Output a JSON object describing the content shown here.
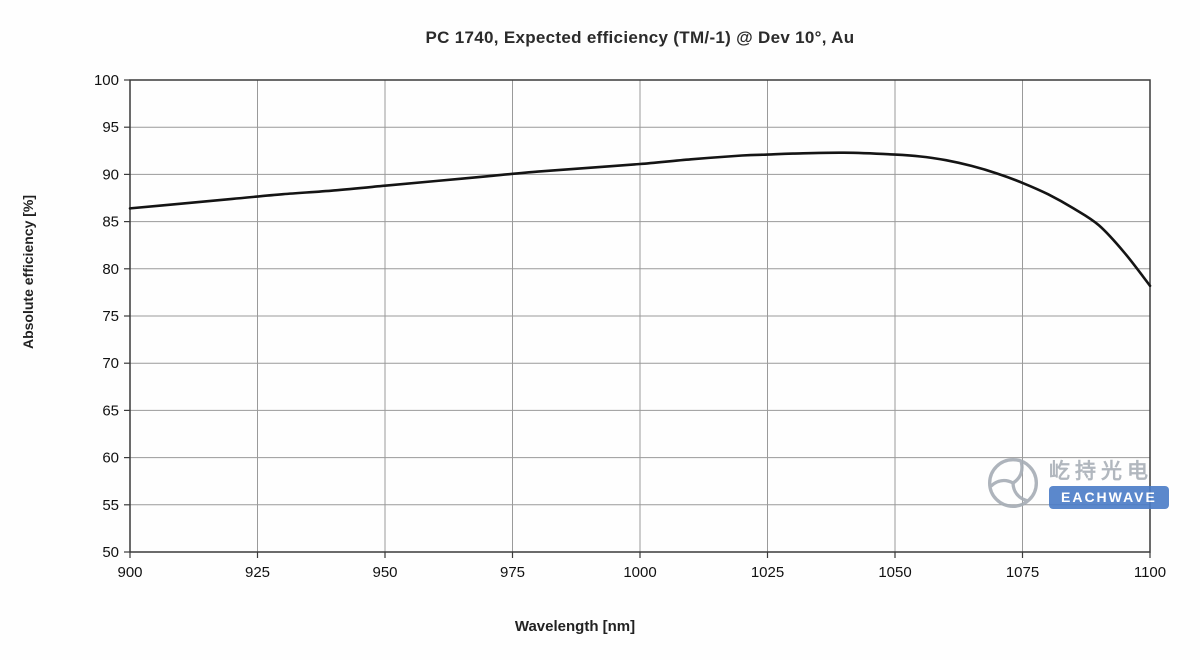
{
  "chart_data": {
    "type": "line",
    "title": "PC 1740, Expected efficiency (TM/-1) @ Dev 10°, Au",
    "xlabel": "Wavelength [nm]",
    "ylabel": "Absolute efficiency [%]",
    "xlim": [
      900,
      1100
    ],
    "ylim": [
      50,
      100
    ],
    "x_ticks": [
      900,
      925,
      950,
      975,
      1000,
      1025,
      1050,
      1075,
      1100
    ],
    "y_ticks": [
      50,
      55,
      60,
      65,
      70,
      75,
      80,
      85,
      90,
      95,
      100
    ],
    "grid": true,
    "legend": "none",
    "line_color": "#141414",
    "series": [
      {
        "name": "Expected efficiency (TM/-1)",
        "x": [
          900,
          910,
          920,
          930,
          940,
          950,
          960,
          970,
          980,
          990,
          1000,
          1010,
          1020,
          1025,
          1030,
          1040,
          1050,
          1055,
          1060,
          1065,
          1070,
          1075,
          1080,
          1085,
          1090,
          1095,
          1100
        ],
        "y": [
          86.4,
          86.9,
          87.4,
          87.9,
          88.3,
          88.8,
          89.3,
          89.8,
          90.3,
          90.7,
          91.1,
          91.6,
          92.0,
          92.1,
          92.2,
          92.3,
          92.1,
          91.9,
          91.5,
          90.9,
          90.1,
          89.1,
          87.9,
          86.4,
          84.6,
          81.7,
          78.2
        ]
      }
    ]
  },
  "watermark": {
    "cn_text": "屹持光电",
    "en_text": "EACHWAVE",
    "brand_color": "#4a7cc7",
    "logo_color": "#a6adb5"
  }
}
